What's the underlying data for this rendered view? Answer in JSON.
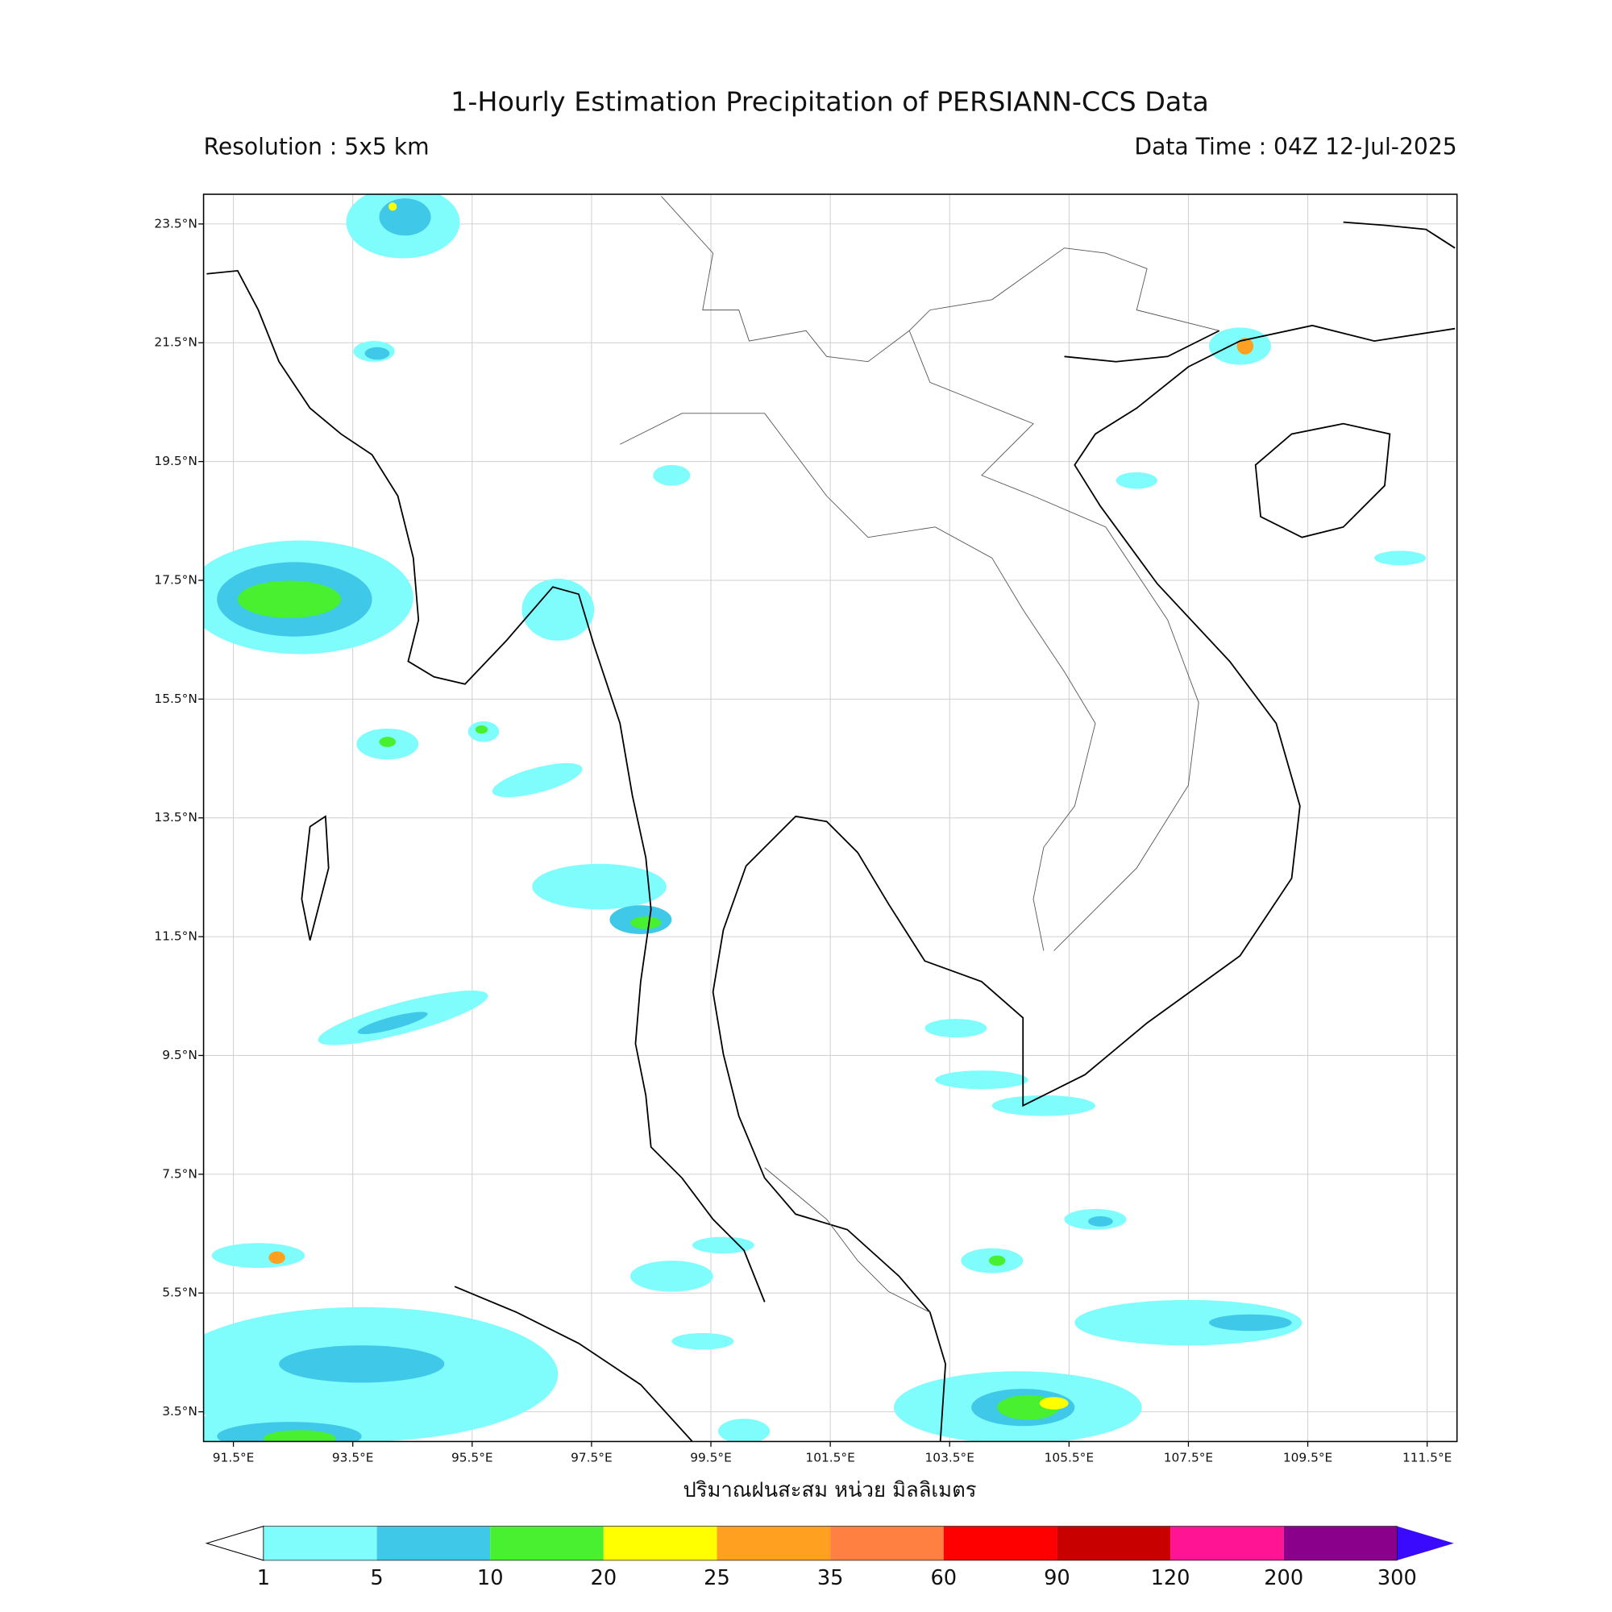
{
  "header": {
    "title": "1-Hourly Estimation Precipitation of PERSIANN-CCS Data",
    "resolution": "Resolution : 5x5 km",
    "data_time": "Data Time : 04Z 12-Jul-2025"
  },
  "map": {
    "xlim": [
      91,
      112
    ],
    "ylim": [
      3,
      24
    ],
    "grid": true,
    "xticks": [
      {
        "value": 91.5,
        "label": "91.5°E"
      },
      {
        "value": 93.5,
        "label": "93.5°E"
      },
      {
        "value": 95.5,
        "label": "95.5°E"
      },
      {
        "value": 97.5,
        "label": "97.5°E"
      },
      {
        "value": 99.5,
        "label": "99.5°E"
      },
      {
        "value": 101.5,
        "label": "101.5°E"
      },
      {
        "value": 103.5,
        "label": "103.5°E"
      },
      {
        "value": 105.5,
        "label": "105.5°E"
      },
      {
        "value": 107.5,
        "label": "107.5°E"
      },
      {
        "value": 109.5,
        "label": "109.5°E"
      },
      {
        "value": 111.5,
        "label": "111.5°E"
      }
    ],
    "yticks": [
      {
        "value": 3.5,
        "label": "3.5°N"
      },
      {
        "value": 5.5,
        "label": "5.5°N"
      },
      {
        "value": 7.5,
        "label": "7.5°N"
      },
      {
        "value": 9.5,
        "label": "9.5°N"
      },
      {
        "value": 11.5,
        "label": "11.5°N"
      },
      {
        "value": 13.5,
        "label": "13.5°N"
      },
      {
        "value": 15.5,
        "label": "15.5°N"
      },
      {
        "value": 17.5,
        "label": "17.5°N"
      },
      {
        "value": 19.5,
        "label": "19.5°N"
      },
      {
        "value": 21.5,
        "label": "21.5°N"
      },
      {
        "value": 23.5,
        "label": "23.5°N"
      }
    ],
    "xlabel": "ปริมาณฝนสะสม หน่วย มิลลิเมตร"
  },
  "colorbar": {
    "levels": [
      1,
      5,
      10,
      20,
      25,
      35,
      60,
      90,
      120,
      200,
      300
    ],
    "colors": [
      "#7ffcfc",
      "#40c8e8",
      "#48f030",
      "#ffff00",
      "#ffa020",
      "#ff8040",
      "#ff0000",
      "#c80000",
      "#ff1493",
      "#8b008b"
    ],
    "under_color": "#ffffff",
    "over_color": "#3a0aff"
  }
}
